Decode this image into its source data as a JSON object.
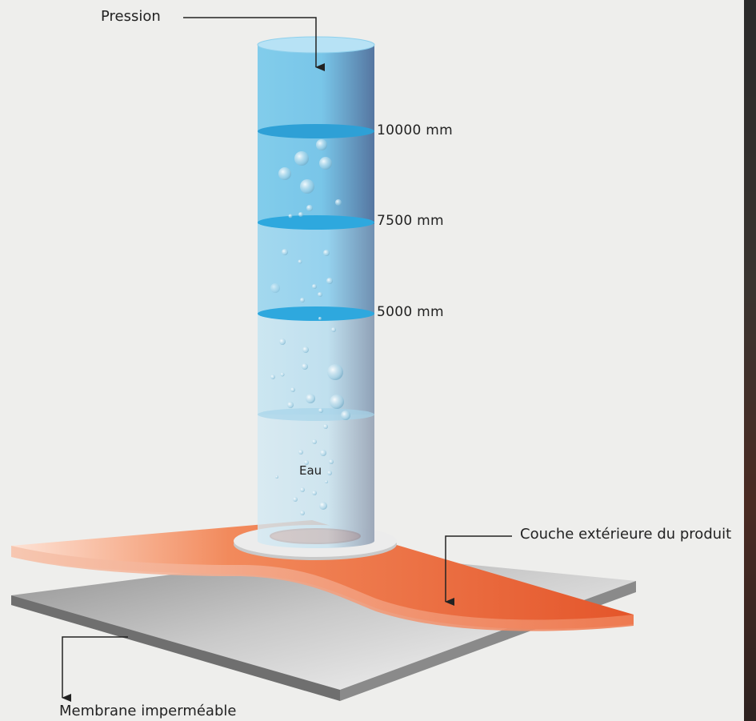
{
  "labels": {
    "pressure": "Pression",
    "water": "Eau",
    "outer_layer": "Couche extérieure du produit",
    "membrane": "Membrane imperméable"
  },
  "marks": [
    {
      "label": "10000 mm"
    },
    {
      "label": "7500 mm"
    },
    {
      "label": "5000 mm"
    }
  ],
  "colors": {
    "background": "#eeeeec",
    "water_light": "#bfe3f2",
    "water_mid": "#7ccbeb",
    "water_dark": "#2ea8de",
    "outer_layer": "#e65a2a",
    "outer_layer_light": "#f6b497",
    "membrane": "#9c9c9c",
    "membrane_light": "#f2f2f2",
    "ring": "#d9d9d9",
    "line": "#222222"
  }
}
